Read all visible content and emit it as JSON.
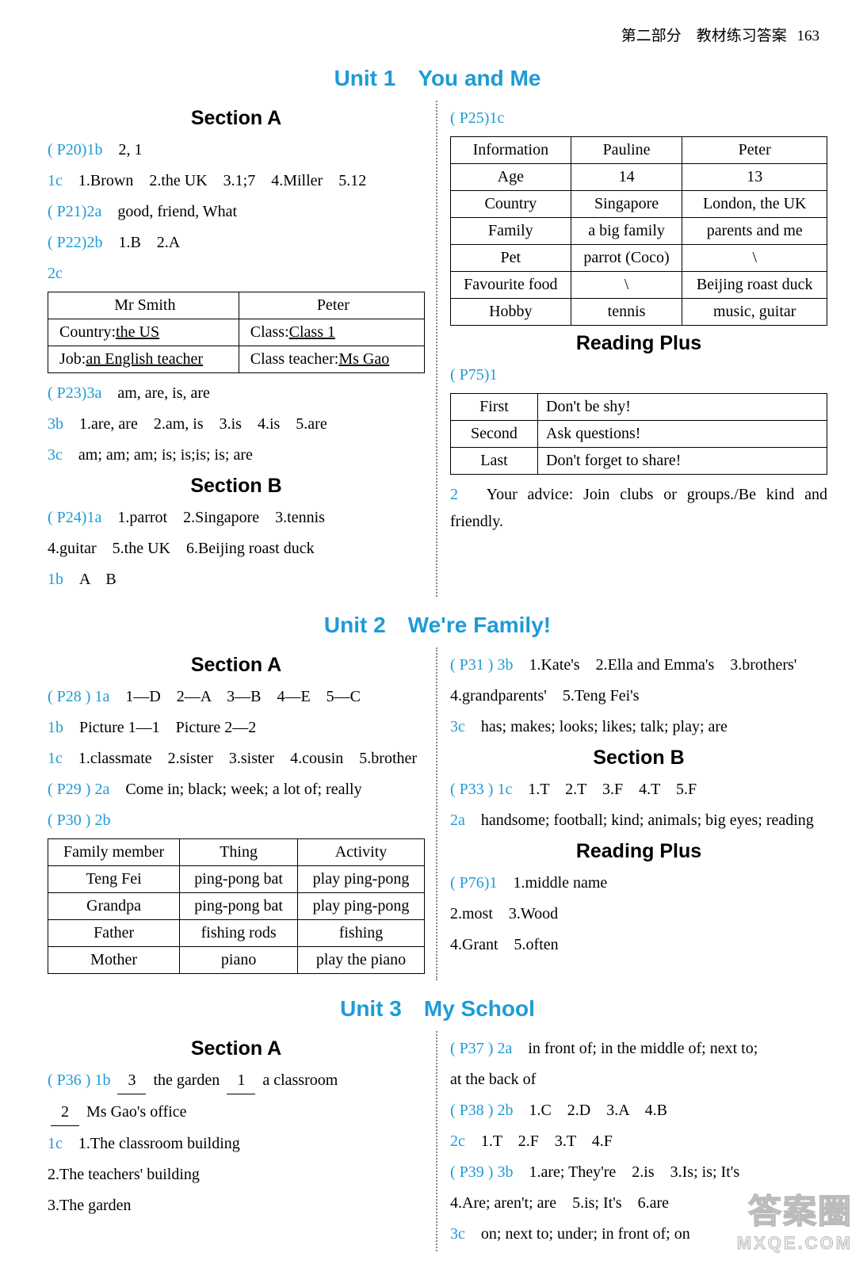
{
  "header": {
    "part": "第二部分　教材练习答案",
    "page": "163"
  },
  "u1": {
    "title": "Unit 1　You and Me",
    "secA": "Section A",
    "secB": "Section B",
    "reading": "Reading Plus",
    "p20_1b": "( P20)1b",
    "p20_1b_v": "2, 1",
    "q1c": "1c",
    "q1c_v": "1.Brown　2.the UK　3.1;7　4.Miller　5.12",
    "p21_2a": "( P21)2a",
    "p21_2a_v": "good, friend, What",
    "p22_2b": "( P22)2b",
    "p22_2b_v": "1.B　2.A",
    "q2c": "2c",
    "tblA": {
      "h1": "Mr Smith",
      "h2": "Peter",
      "r1c1a": "Country:",
      "r1c1b": "the US",
      "r1c2a": "Class:",
      "r1c2b": "Class 1",
      "r2c1a": "Job:",
      "r2c1b": "an English teacher",
      "r2c2a": "Class teacher:",
      "r2c2b": "Ms Gao"
    },
    "p23_3a": "( P23)3a",
    "p23_3a_v": "am, are, is, are",
    "q3b": "3b",
    "q3b_v": "1.are, are　2.am, is　3.is　4.is　5.are",
    "q3c": "3c",
    "q3c_v": "am; am; am; is; is;is; is; are",
    "p24_1a": "( P24)1a",
    "p24_1a_v": "1.parrot　2.Singapore　3.tennis",
    "p24_1a_v2": "4.guitar　5.the UK　6.Beijing roast duck",
    "q1b": "1b",
    "q1b_v": "A　B",
    "p25_1c": "( P25)1c",
    "tblB": {
      "h1": "Information",
      "h2": "Pauline",
      "h3": "Peter",
      "rows": [
        [
          "Age",
          "14",
          "13"
        ],
        [
          "Country",
          "Singapore",
          "London, the UK"
        ],
        [
          "Family",
          "a big family",
          "parents and me"
        ],
        [
          "Pet",
          "parrot (Coco)",
          "\\"
        ],
        [
          "Favourite food",
          "\\",
          "Beijing roast duck"
        ],
        [
          "Hobby",
          "tennis",
          "music, guitar"
        ]
      ]
    },
    "p75_1": "( P75)1",
    "tblC": {
      "rows": [
        [
          "First",
          "Don't be shy!"
        ],
        [
          "Second",
          "Ask questions!"
        ],
        [
          "Last",
          "Don't forget to share!"
        ]
      ]
    },
    "q2": "2",
    "q2_v": "Your advice: Join clubs or groups./Be kind and friendly."
  },
  "u2": {
    "title": "Unit 2　We're Family!",
    "secA": "Section A",
    "secB": "Section B",
    "reading": "Reading Plus",
    "p28_1a": "( P28 ) 1a",
    "p28_1a_v": "1—D　2—A　3—B　4—E　5—C",
    "q1b": "1b",
    "q1b_v": "Picture 1—1　Picture 2—2",
    "q1c": "1c",
    "q1c_v": "1.classmate　2.sister　3.sister　4.cousin　5.brother",
    "p29_2a": "( P29 ) 2a",
    "p29_2a_v": "Come in; black; week; a lot of; really",
    "p30_2b": "( P30 ) 2b",
    "tbl": {
      "h1": "Family member",
      "h2": "Thing",
      "h3": "Activity",
      "rows": [
        [
          "Teng Fei",
          "ping-pong bat",
          "play ping-pong"
        ],
        [
          "Grandpa",
          "ping-pong bat",
          "play ping-pong"
        ],
        [
          "Father",
          "fishing rods",
          "fishing"
        ],
        [
          "Mother",
          "piano",
          "play the piano"
        ]
      ]
    },
    "p31_3b": "( P31 ) 3b",
    "p31_3b_v": "1.Kate's　2.Ella and Emma's　3.brothers'",
    "p31_3b_v2": "4.grandparents'　5.Teng Fei's",
    "q3c": "3c",
    "q3c_v": "has; makes; looks; likes; talk; play; are",
    "p33_1c": "( P33 ) 1c",
    "p33_1c_v": "1.T　2.T　3.F　4.T　5.F",
    "q2a": "2a",
    "q2a_v": "handsome; football; kind; animals; big eyes; reading",
    "p76_1": "( P76)1",
    "p76_1_v": "1.middle name",
    "p76_2": "2.most　3.Wood",
    "p76_3": "4.Grant　5.often"
  },
  "u3": {
    "title": "Unit 3　My School",
    "secA": "Section A",
    "p36_1b": "( P36 ) 1b",
    "p36_1b_b1": "3",
    "p36_1b_t1": "the garden",
    "p36_1b_b2": "1",
    "p36_1b_t2": "a classroom",
    "p36_1b_b3": "2",
    "p36_1b_t3": "Ms Gao's office",
    "q1c": "1c",
    "q1c_v": "1.The classroom building",
    "q1c_2": "2.The teachers' building",
    "q1c_3": "3.The garden",
    "p37_2a": "( P37 ) 2a",
    "p37_2a_v": "in front of; in the middle of; next to;",
    "p37_2a_v2": "at the back of",
    "p38_2b": "( P38 ) 2b",
    "p38_2b_v": "1.C　2.D　3.A　4.B",
    "q2c": "2c",
    "q2c_v": "1.T　2.F　3.T　4.F",
    "p39_3b": "( P39 ) 3b",
    "p39_3b_v": "1.are; They're　2.is　3.Is; is; It's",
    "p39_3b_v2": "4.Are; aren't; are　5.is; It's　6.are",
    "q3c": "3c",
    "q3c_v": "on; next to; under; in front of; on"
  },
  "wm": {
    "top": "答案圈",
    "bottom": "MXQE.COM"
  }
}
